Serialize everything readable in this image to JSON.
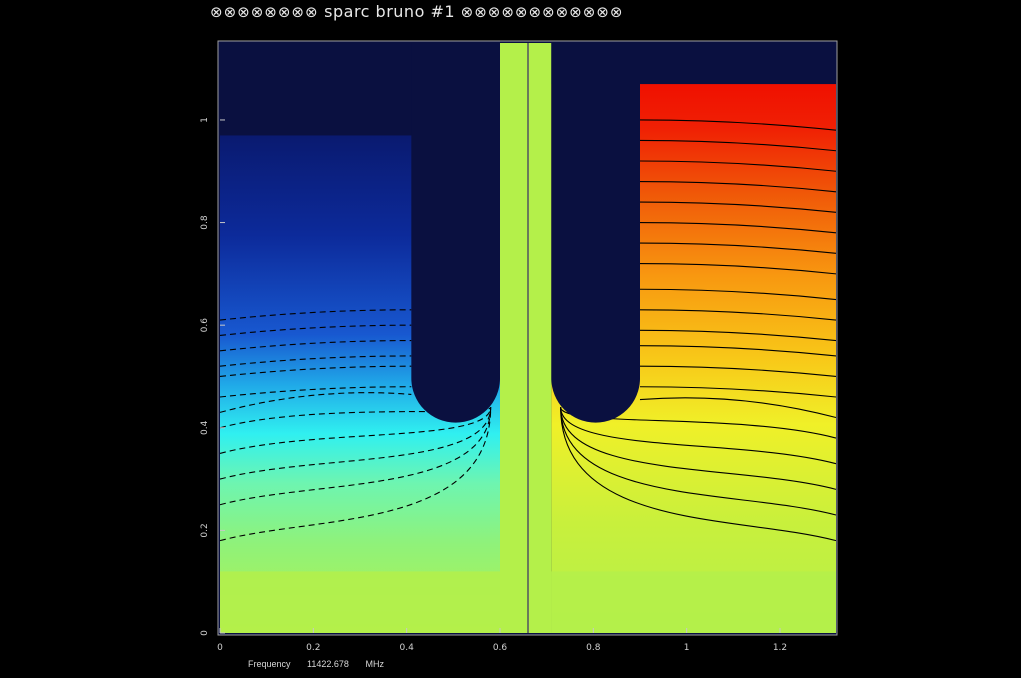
{
  "header": {
    "prefix_symbols": "⊗⊗⊗⊗⊗⊗⊗⊗",
    "title": "sparc bruno #1",
    "suffix_symbols": "⊗⊗⊗⊗⊗⊗⊗⊗⊗⊗⊗⊗"
  },
  "footer": {
    "label": "Frequency",
    "value": "11422.678",
    "unit": "MHz"
  },
  "chart_data": {
    "type": "heatmap",
    "title": "sparc bruno #1",
    "xlabel": "",
    "ylabel": "",
    "xlim": [
      0,
      1.32
    ],
    "ylim": [
      0,
      1.15
    ],
    "x_ticks": [
      0,
      0.2,
      0.4,
      0.6,
      0.8,
      1,
      1.2
    ],
    "x_tick_labels": [
      "0",
      "0.2",
      "0.4",
      "0.6",
      "0.8",
      "1",
      "1.2"
    ],
    "y_ticks": [
      0,
      0.2,
      0.4,
      0.6,
      0.8,
      1
    ],
    "y_tick_labels": [
      "0",
      "0.2",
      "0.4",
      "0.6",
      "0.8",
      "1"
    ],
    "grid": false,
    "colormap": "jet",
    "background_color": "#000000",
    "conductor_color": "#0a1040",
    "gap_color": "#b4f04a",
    "divider_x": 0.66,
    "left_electrode": {
      "x_min": 0.41,
      "x_max": 0.6,
      "y_bottom": 0.41
    },
    "right_electrode": {
      "x_min": 0.71,
      "x_max": 0.9,
      "y_bottom": 0.41
    },
    "left_region": {
      "x_min": 0,
      "x_max": 0.41,
      "y_top": 0.97,
      "contour_style": "dashed"
    },
    "right_region": {
      "x_min": 0.9,
      "x_max": 1.32,
      "y_top": 1.07,
      "contour_style": "solid"
    },
    "left_contour_levels": [
      0.18,
      0.25,
      0.3,
      0.35,
      0.4,
      0.43,
      0.46,
      0.5,
      0.52,
      0.55,
      0.58,
      0.61
    ],
    "right_contour_levels": [
      0.18,
      0.23,
      0.28,
      0.33,
      0.38,
      0.42,
      0.46,
      0.5,
      0.54,
      0.57,
      0.61,
      0.65,
      0.7,
      0.74,
      0.78,
      0.82,
      0.86,
      0.9,
      0.94,
      0.98
    ]
  }
}
